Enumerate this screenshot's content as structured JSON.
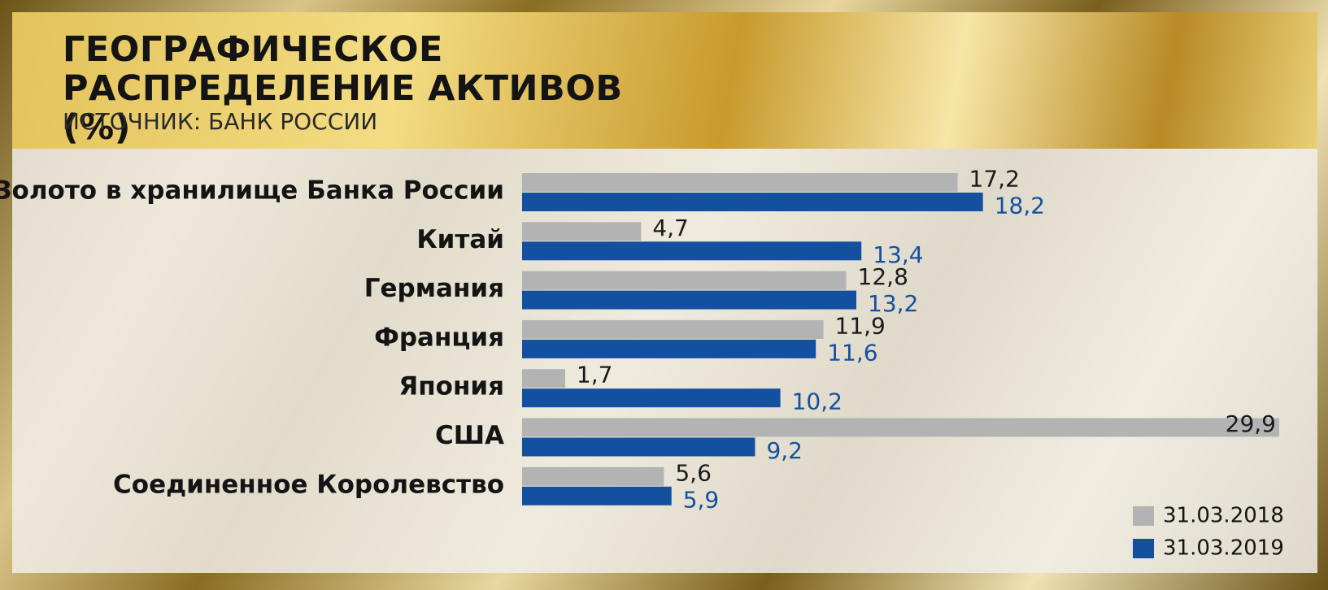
{
  "chart_data": {
    "type": "bar",
    "orientation": "horizontal",
    "title": "ГЕОГРАФИЧЕСКОЕ РАСПРЕДЕЛЕНИЕ АКТИВОВ (%)",
    "subtitle": "ИСТОЧНИК: БАНК РОССИИ",
    "categories": [
      "Золото в хранилище Банка России",
      "Китай",
      "Германия",
      "Франция",
      "Япония",
      "США",
      "Соединенное Королевство"
    ],
    "series": [
      {
        "name": "31.03.2018",
        "color": "#b3b3b3",
        "label_color": "#1a1a1a",
        "values": [
          17.2,
          4.7,
          12.8,
          11.9,
          1.7,
          29.9,
          5.6
        ],
        "value_labels": [
          "17,2",
          "4,7",
          "12,8",
          "11,9",
          "1,7",
          "29,9",
          "5,6"
        ]
      },
      {
        "name": "31.03.2019",
        "color": "#1450a0",
        "label_color": "#1450a0",
        "values": [
          18.2,
          13.4,
          13.2,
          11.6,
          10.2,
          9.2,
          5.9
        ],
        "value_labels": [
          "18,2",
          "13,4",
          "13,2",
          "11,6",
          "10,2",
          "9,2",
          "5,9"
        ]
      }
    ],
    "legend": "bottom-right"
  }
}
